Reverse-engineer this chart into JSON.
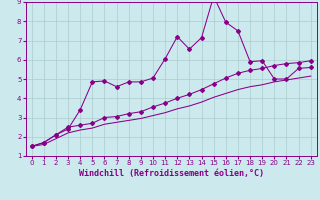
{
  "background_color": "#cce9ee",
  "grid_color": "#aacccc",
  "line_color": "#880088",
  "xlabel": "Windchill (Refroidissement éolien,°C)",
  "xlim": [
    -0.5,
    23.5
  ],
  "ylim": [
    1,
    9
  ],
  "xticks": [
    0,
    1,
    2,
    3,
    4,
    5,
    6,
    7,
    8,
    9,
    10,
    11,
    12,
    13,
    14,
    15,
    16,
    17,
    18,
    19,
    20,
    21,
    22,
    23
  ],
  "yticks": [
    1,
    2,
    3,
    4,
    5,
    6,
    7,
    8,
    9
  ],
  "series1_x": [
    0,
    1,
    2,
    3,
    4,
    5,
    6,
    7,
    8,
    9,
    10,
    11,
    12,
    13,
    14,
    15,
    16,
    17,
    18,
    19,
    20,
    21,
    22,
    23
  ],
  "series1_y": [
    1.5,
    1.7,
    2.1,
    2.4,
    3.4,
    4.85,
    4.9,
    4.6,
    4.85,
    4.85,
    5.05,
    6.05,
    7.2,
    6.55,
    7.15,
    9.3,
    7.95,
    7.5,
    5.9,
    5.95,
    5.0,
    5.0,
    5.55,
    5.6
  ],
  "series2_x": [
    0,
    1,
    2,
    3,
    4,
    5,
    6,
    7,
    8,
    9,
    10,
    11,
    12,
    13,
    14,
    15,
    16,
    17,
    18,
    19,
    20,
    21,
    22,
    23
  ],
  "series2_y": [
    1.5,
    1.7,
    2.1,
    2.5,
    2.6,
    2.7,
    3.0,
    3.05,
    3.2,
    3.3,
    3.55,
    3.75,
    4.0,
    4.2,
    4.45,
    4.75,
    5.05,
    5.3,
    5.45,
    5.55,
    5.7,
    5.8,
    5.85,
    5.95
  ],
  "series3_x": [
    0,
    1,
    2,
    3,
    4,
    5,
    6,
    7,
    8,
    9,
    10,
    11,
    12,
    13,
    14,
    15,
    16,
    17,
    18,
    19,
    20,
    21,
    22,
    23
  ],
  "series3_y": [
    1.5,
    1.6,
    1.9,
    2.2,
    2.35,
    2.45,
    2.65,
    2.75,
    2.85,
    2.95,
    3.1,
    3.25,
    3.45,
    3.6,
    3.8,
    4.05,
    4.25,
    4.45,
    4.6,
    4.7,
    4.85,
    4.95,
    5.05,
    5.15
  ],
  "marker_size": 2.0,
  "line_width": 0.75,
  "tick_fontsize": 5,
  "xlabel_fontsize": 6,
  "xlabel_fontweight": "bold"
}
